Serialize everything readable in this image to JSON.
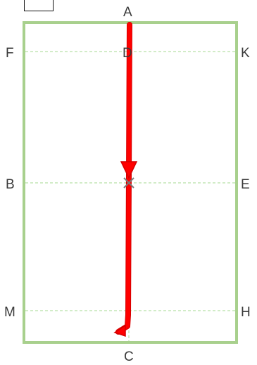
{
  "arena": {
    "letters": {
      "A": "A",
      "C": "C",
      "F": "F",
      "K": "K",
      "D": "D",
      "B": "B",
      "E": "E",
      "M": "M",
      "H": "H"
    },
    "colors": {
      "border": "#a8d08d",
      "guides": "#b8e0a6",
      "path": "#ff0000",
      "path_outline": "#d40000",
      "marker_text": "#3a3a3a"
    }
  },
  "route": {
    "description_visible": false,
    "segments": [
      "A to X",
      "X to C"
    ],
    "arrow_directions": [
      "down",
      "down-left"
    ]
  },
  "legend": {
    "icon": "empty-legend-box"
  }
}
